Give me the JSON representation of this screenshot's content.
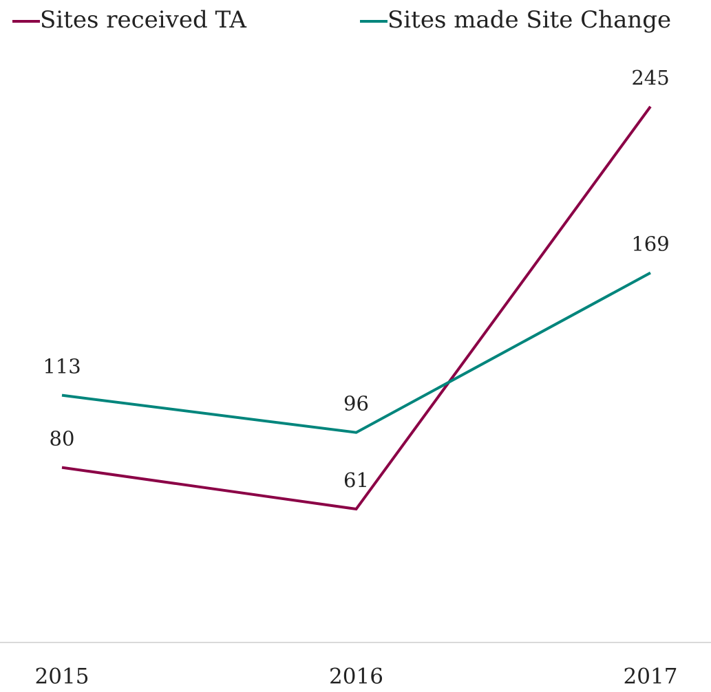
{
  "chart_data": {
    "type": "line",
    "categories": [
      "2015",
      "2016",
      "2017"
    ],
    "series": [
      {
        "name": "Sites received TA",
        "color": "#8b0046",
        "values": [
          80,
          61,
          245
        ]
      },
      {
        "name": "Sites made Site Change",
        "color": "#00857c",
        "values": [
          113,
          96,
          169
        ]
      }
    ],
    "ylim": [
      0,
      250
    ],
    "legend": "top"
  }
}
